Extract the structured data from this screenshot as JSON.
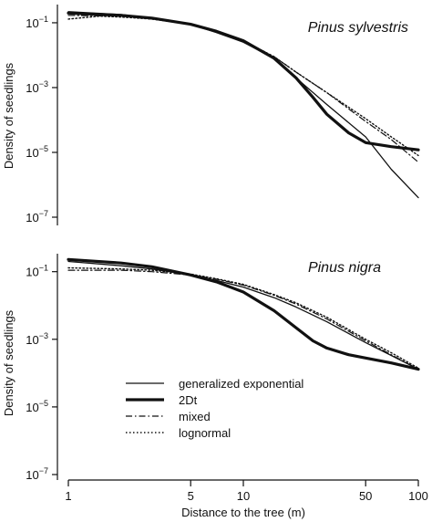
{
  "chart_data": [
    {
      "type": "line",
      "title": "Pinus sylvestris",
      "xlabel": "",
      "ylabel": "Density of seedlings",
      "xscale": "log",
      "yscale": "log",
      "xlim": [
        1,
        100
      ],
      "ylim": [
        1e-07,
        0.3
      ],
      "x_ticks": [
        {
          "value": 1,
          "label": "1"
        },
        {
          "value": 5,
          "label": "5"
        },
        {
          "value": 10,
          "label": "10"
        },
        {
          "value": 50,
          "label": "50"
        },
        {
          "value": 100,
          "label": "100"
        }
      ],
      "y_ticks": [
        {
          "value": 0.1,
          "mant": "10",
          "exp": "−1"
        },
        {
          "value": 0.001,
          "mant": "10",
          "exp": "−3"
        },
        {
          "value": 1e-05,
          "mant": "10",
          "exp": "−5"
        },
        {
          "value": 1e-07,
          "mant": "10",
          "exp": "−7"
        }
      ],
      "series": [
        {
          "name": "generalized exponential",
          "style": "thin",
          "x": [
            1,
            2,
            3,
            5,
            7,
            10,
            15,
            20,
            30,
            50,
            70,
            100
          ],
          "y": [
            0.22,
            0.18,
            0.14,
            0.09,
            0.05,
            0.025,
            0.008,
            0.002,
            0.0003,
            3e-05,
            3e-06,
            4e-07
          ]
        },
        {
          "name": "2Dt",
          "style": "thick",
          "x": [
            1,
            2,
            3,
            5,
            7,
            10,
            15,
            20,
            25,
            30,
            40,
            50,
            70,
            100
          ],
          "y": [
            0.2,
            0.17,
            0.14,
            0.09,
            0.055,
            0.028,
            0.008,
            0.002,
            0.0005,
            0.00015,
            4e-05,
            2e-05,
            1.5e-05,
            1.2e-05
          ]
        },
        {
          "name": "mixed",
          "style": "dashdot",
          "x": [
            1,
            2,
            3,
            5,
            7,
            10,
            15,
            20,
            30,
            50,
            70,
            100
          ],
          "y": [
            0.17,
            0.16,
            0.13,
            0.09,
            0.055,
            0.028,
            0.009,
            0.003,
            0.0007,
            9e-05,
            2.5e-05,
            5e-06
          ]
        },
        {
          "name": "lognormal",
          "style": "dotted",
          "x": [
            1,
            1.5,
            2,
            3,
            5,
            7,
            10,
            15,
            20,
            30,
            50,
            70,
            100
          ],
          "y": [
            0.13,
            0.16,
            0.15,
            0.13,
            0.09,
            0.055,
            0.028,
            0.009,
            0.003,
            0.0007,
            0.00011,
            3e-05,
            8e-06
          ]
        }
      ]
    },
    {
      "type": "line",
      "title": "Pinus nigra",
      "xlabel": "Distance to the tree (m)",
      "ylabel": "Density of seedlings",
      "xscale": "log",
      "yscale": "log",
      "xlim": [
        1,
        100
      ],
      "ylim": [
        1e-07,
        0.3
      ],
      "x_ticks": [
        {
          "value": 1,
          "label": "1"
        },
        {
          "value": 5,
          "label": "5"
        },
        {
          "value": 10,
          "label": "10"
        },
        {
          "value": 50,
          "label": "50"
        },
        {
          "value": 100,
          "label": "100"
        }
      ],
      "y_ticks": [
        {
          "value": 0.1,
          "mant": "10",
          "exp": "−1"
        },
        {
          "value": 0.001,
          "mant": "10",
          "exp": "−3"
        },
        {
          "value": 1e-05,
          "mant": "10",
          "exp": "−5"
        },
        {
          "value": 1e-07,
          "mant": "10",
          "exp": "−7"
        }
      ],
      "legend": {
        "position": "lower-left"
      },
      "series": [
        {
          "name": "generalized exponential",
          "style": "thin",
          "x": [
            1,
            2,
            3,
            5,
            7,
            10,
            15,
            20,
            30,
            50,
            70,
            100
          ],
          "y": [
            0.2,
            0.15,
            0.12,
            0.08,
            0.055,
            0.035,
            0.017,
            0.009,
            0.0033,
            0.0008,
            0.00033,
            0.00013
          ]
        },
        {
          "name": "2Dt",
          "style": "thick",
          "x": [
            1,
            2,
            3,
            5,
            7,
            10,
            15,
            20,
            25,
            30,
            40,
            50,
            70,
            100
          ],
          "y": [
            0.23,
            0.18,
            0.14,
            0.08,
            0.05,
            0.025,
            0.007,
            0.0022,
            0.0009,
            0.00055,
            0.00035,
            0.00028,
            0.0002,
            0.00013
          ]
        },
        {
          "name": "mixed",
          "style": "dashdot",
          "x": [
            1,
            2,
            3,
            5,
            7,
            10,
            15,
            20,
            30,
            50,
            70,
            100
          ],
          "y": [
            0.11,
            0.11,
            0.1,
            0.08,
            0.06,
            0.04,
            0.02,
            0.011,
            0.004,
            0.0009,
            0.00035,
            0.00013
          ]
        },
        {
          "name": "lognormal",
          "style": "dotted",
          "x": [
            1,
            2,
            3,
            5,
            7,
            10,
            15,
            20,
            30,
            50,
            70,
            100
          ],
          "y": [
            0.13,
            0.12,
            0.11,
            0.085,
            0.062,
            0.042,
            0.021,
            0.012,
            0.0045,
            0.001,
            0.0004,
            0.00014
          ]
        }
      ]
    }
  ],
  "legend": {
    "entries": [
      {
        "label": "generalized exponential",
        "style": "thin"
      },
      {
        "label": "2Dt",
        "style": "thick"
      },
      {
        "label": "mixed",
        "style": "dashdot"
      },
      {
        "label": "lognormal",
        "style": "dotted"
      }
    ]
  }
}
